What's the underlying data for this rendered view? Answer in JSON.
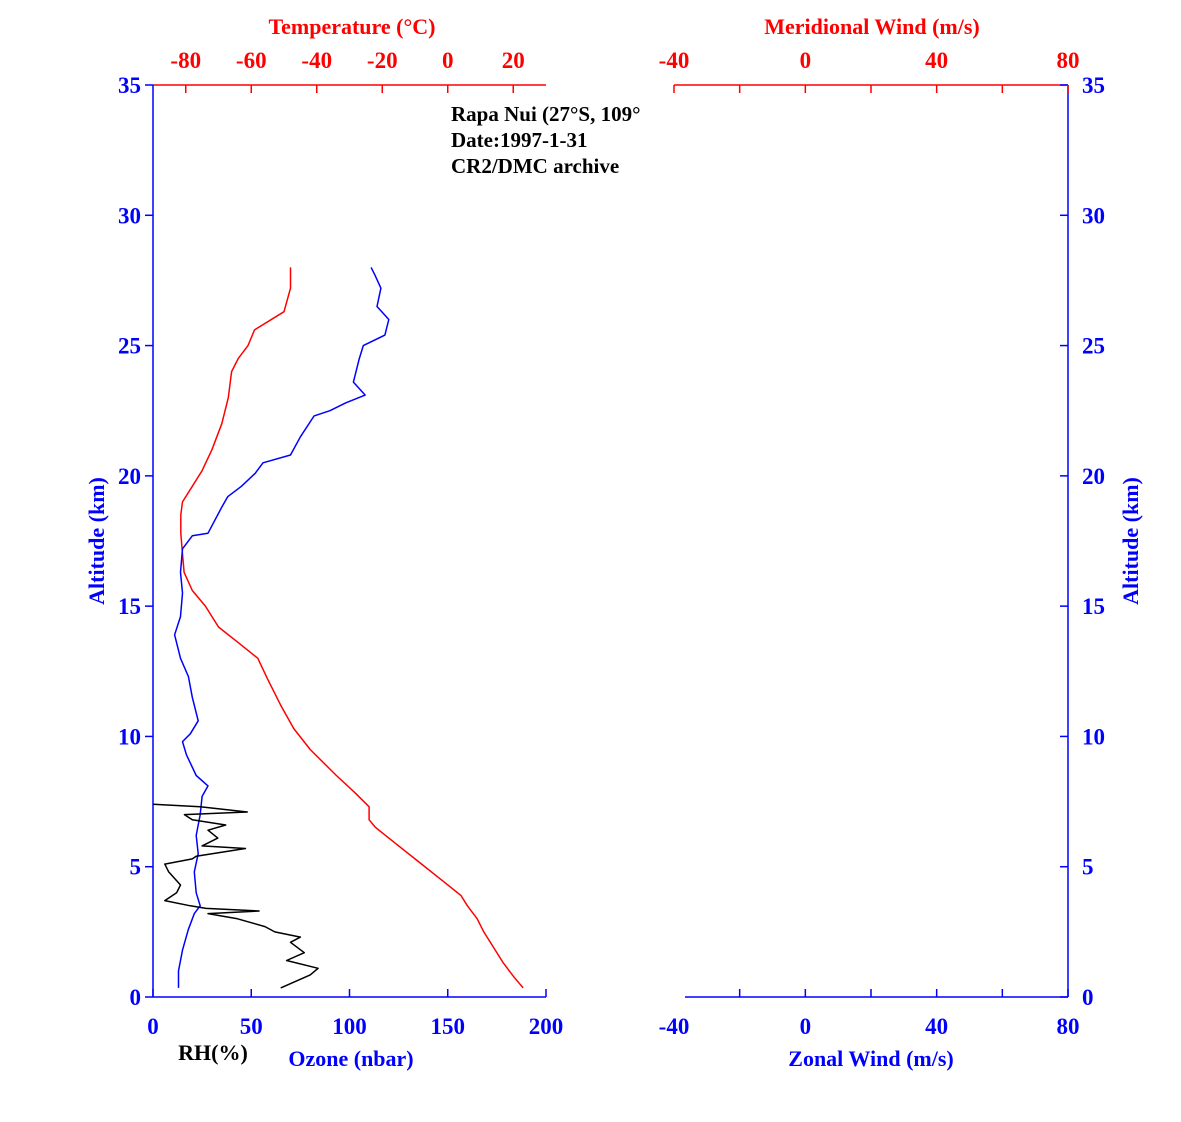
{
  "annotation": {
    "line1": "Rapa Nui (27°S, 109°",
    "line2": "Date:1997-1-31",
    "line3": "CR2/DMC archive"
  },
  "colors": {
    "blue": "#0000ff",
    "red": "#ff0000",
    "black": "#000000"
  },
  "chart_data": [
    {
      "type": "line",
      "panel": "left",
      "title": "",
      "xlabel_bottom": "Ozone (nbar)",
      "xlabel_bottom_secondary": "RH(%)",
      "xlabel_top": "Temperature (°C)",
      "ylabel": "Altitude (km)",
      "ylim": [
        0,
        35
      ],
      "yticks": [
        0,
        5,
        10,
        15,
        20,
        25,
        30,
        35
      ],
      "x_bottom_lim": [
        0,
        200
      ],
      "x_bottom_ticks": [
        0,
        50,
        100,
        150,
        200
      ],
      "x_top_lim": [
        -90,
        30
      ],
      "x_top_ticks": [
        -80,
        -60,
        -40,
        -20,
        0,
        20
      ],
      "series": [
        {
          "name": "Temperature",
          "axis": "top",
          "color": "#ff0000",
          "points": [
            [
              23,
              0.35
            ],
            [
              20,
              0.8
            ],
            [
              17,
              1.3
            ],
            [
              14,
              1.9
            ],
            [
              11,
              2.5
            ],
            [
              9,
              3.0
            ],
            [
              6,
              3.5
            ],
            [
              4,
              3.9
            ],
            [
              -2,
              4.5
            ],
            [
              -9,
              5.2
            ],
            [
              -16,
              5.9
            ],
            [
              -22,
              6.5
            ],
            [
              -24,
              6.8
            ],
            [
              -24,
              7.3
            ],
            [
              -28,
              7.8
            ],
            [
              -34,
              8.5
            ],
            [
              -42,
              9.5
            ],
            [
              -47,
              10.3
            ],
            [
              -51,
              11.2
            ],
            [
              -55,
              12.2
            ],
            [
              -58,
              13.0
            ],
            [
              -64,
              13.6
            ],
            [
              -70,
              14.2
            ],
            [
              -74,
              15.0
            ],
            [
              -78,
              15.6
            ],
            [
              -80.5,
              16.3
            ],
            [
              -81,
              17.0
            ],
            [
              -81.5,
              17.8
            ],
            [
              -81.5,
              18.5
            ],
            [
              -81,
              19.0
            ],
            [
              -78,
              19.6
            ],
            [
              -75,
              20.2
            ],
            [
              -72,
              21.0
            ],
            [
              -69,
              22.0
            ],
            [
              -67,
              23.0
            ],
            [
              -66,
              24.0
            ],
            [
              -64,
              24.5
            ],
            [
              -61,
              25.0
            ],
            [
              -59,
              25.6
            ],
            [
              -50,
              26.3
            ],
            [
              -48,
              27.2
            ],
            [
              -48,
              28.0
            ]
          ]
        },
        {
          "name": "Ozone",
          "axis": "bottom",
          "color": "#0000ff",
          "points": [
            [
              13,
              0.35
            ],
            [
              13,
              1.0
            ],
            [
              15,
              1.8
            ],
            [
              18,
              2.6
            ],
            [
              21,
              3.2
            ],
            [
              24,
              3.5
            ],
            [
              22,
              4.0
            ],
            [
              21,
              4.8
            ],
            [
              23,
              5.5
            ],
            [
              22,
              6.2
            ],
            [
              24,
              7.0
            ],
            [
              25,
              7.7
            ],
            [
              28,
              8.1
            ],
            [
              22,
              8.5
            ],
            [
              17,
              9.3
            ],
            [
              15,
              9.8
            ],
            [
              19,
              10.1
            ],
            [
              23,
              10.6
            ],
            [
              20,
              11.5
            ],
            [
              18,
              12.3
            ],
            [
              14,
              13.0
            ],
            [
              11,
              13.9
            ],
            [
              14,
              14.6
            ],
            [
              15,
              15.5
            ],
            [
              14,
              16.3
            ],
            [
              15,
              17.2
            ],
            [
              20,
              17.7
            ],
            [
              28,
              17.8
            ],
            [
              35,
              18.8
            ],
            [
              38,
              19.2
            ],
            [
              45,
              19.6
            ],
            [
              52,
              20.1
            ],
            [
              56,
              20.5
            ],
            [
              70,
              20.8
            ],
            [
              75,
              21.5
            ],
            [
              82,
              22.3
            ],
            [
              90,
              22.5
            ],
            [
              98,
              22.8
            ],
            [
              108,
              23.1
            ],
            [
              102,
              23.6
            ],
            [
              105,
              24.5
            ],
            [
              107,
              25.0
            ],
            [
              118,
              25.4
            ],
            [
              120,
              26.0
            ],
            [
              114,
              26.5
            ],
            [
              116,
              27.2
            ],
            [
              113,
              27.7
            ],
            [
              111,
              28.0
            ]
          ]
        },
        {
          "name": "RH",
          "axis": "bottom",
          "color": "#000000",
          "points": [
            [
              65,
              0.35
            ],
            [
              80,
              0.85
            ],
            [
              84,
              1.1
            ],
            [
              68,
              1.4
            ],
            [
              77,
              1.7
            ],
            [
              70,
              2.1
            ],
            [
              75,
              2.3
            ],
            [
              62,
              2.5
            ],
            [
              57,
              2.7
            ],
            [
              43,
              3.0
            ],
            [
              28,
              3.2
            ],
            [
              54,
              3.3
            ],
            [
              27,
              3.4
            ],
            [
              19,
              3.5
            ],
            [
              6,
              3.7
            ],
            [
              12,
              4.0
            ],
            [
              14,
              4.3
            ],
            [
              8,
              4.8
            ],
            [
              6,
              5.1
            ],
            [
              20,
              5.3
            ],
            [
              22,
              5.4
            ],
            [
              47,
              5.7
            ],
            [
              25,
              5.8
            ],
            [
              33,
              6.1
            ],
            [
              28,
              6.4
            ],
            [
              37,
              6.6
            ],
            [
              20,
              6.8
            ],
            [
              16,
              7.0
            ],
            [
              48,
              7.1
            ],
            [
              24,
              7.3
            ],
            [
              0,
              7.4
            ]
          ]
        }
      ]
    },
    {
      "type": "line",
      "panel": "right",
      "title": "",
      "xlabel_bottom": "Zonal Wind (m/s)",
      "xlabel_top": "Meridional Wind (m/s)",
      "ylabel": "Altitude (km)",
      "ylim": [
        0,
        35
      ],
      "yticks": [
        0,
        5,
        10,
        15,
        20,
        25,
        30,
        35
      ],
      "xlim": [
        -40,
        80
      ],
      "xticks": [
        -40,
        0,
        40,
        80
      ],
      "series": []
    }
  ]
}
